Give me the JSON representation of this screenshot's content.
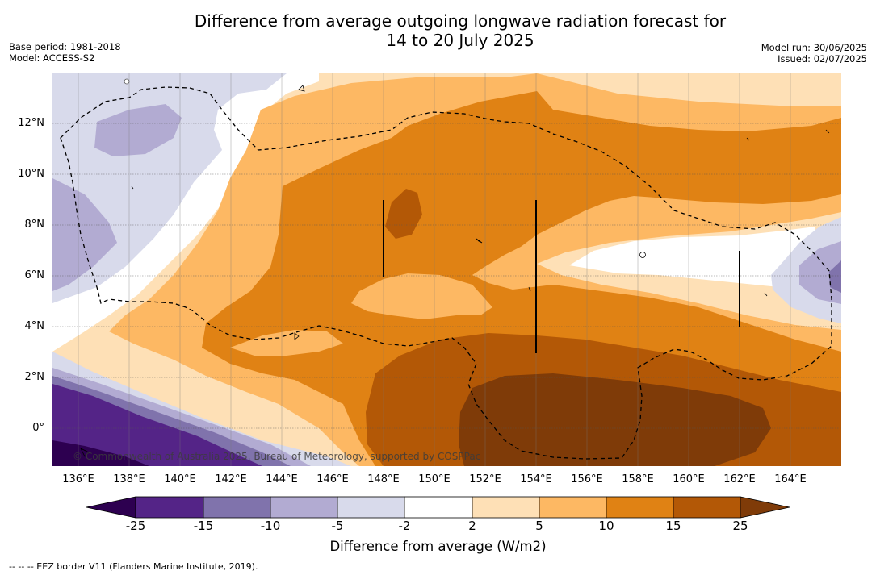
{
  "title_line1": "Difference from average outgoing longwave radiation forecast for",
  "title_line2": "14 to 20 July 2025",
  "base_period": "Base period: 1981-2018",
  "model": "Model: ACCESS-S2",
  "model_run": "Model run: 30/06/2025",
  "issued": "Issued: 02/07/2025",
  "copyright": "© Commonwealth of Australia 2025, Bureau of Meteorology, supported by COSPPac",
  "lat_labels": [
    "12°N",
    "10°N",
    "8°N",
    "6°N",
    "4°N",
    "2°N",
    "0°"
  ],
  "lon_labels": [
    "136°E",
    "138°E",
    "140°E",
    "142°E",
    "144°E",
    "146°E",
    "148°E",
    "150°E",
    "152°E",
    "154°E",
    "156°E",
    "158°E",
    "160°E",
    "162°E",
    "164°E"
  ],
  "colorbar": {
    "labels": [
      "-25",
      "-15",
      "-10",
      "-5",
      "-2",
      "2",
      "5",
      "10",
      "15",
      "25"
    ],
    "title": "Difference from average (W/m2)",
    "colors": {
      "below_min": "#2d0050",
      "n25_n15": "#542487",
      "n15_n10": "#8073ac",
      "n10_n5": "#b2abd2",
      "n5_n2": "#d8daeb",
      "n2_2": "#ffffff",
      "p2_5": "#fee0b6",
      "p5_10": "#fdb863",
      "p10_15": "#e08214",
      "p15_25": "#b35806",
      "above_max": "#7f3b08"
    }
  },
  "footnote": "-- -- -- EEZ border V11 (Flanders Marine Institute, 2019)."
}
